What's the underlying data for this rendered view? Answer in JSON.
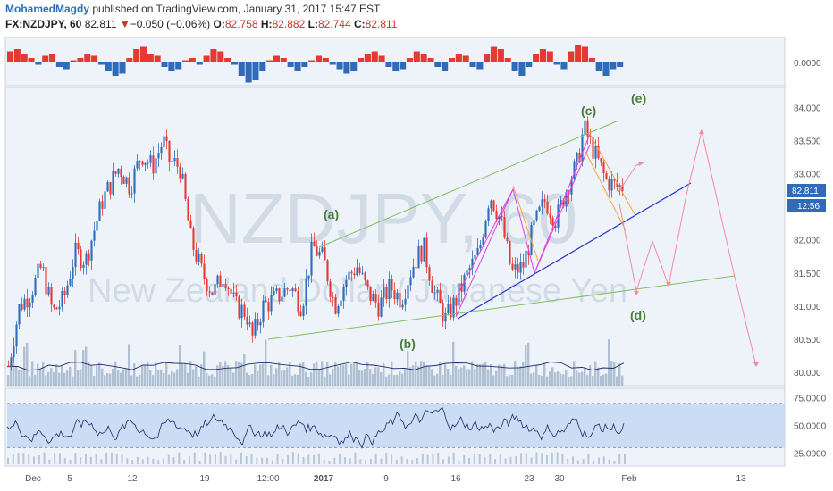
{
  "header": {
    "author": "MohamedMagdy",
    "published": "published on TradingView.com, January 31, 2017 15:47 EST",
    "symbol": "FX:NZDJPY, 60",
    "last": "82.811",
    "change_arrow": "▼",
    "change": "−0.050 (−0.06%)",
    "o_label": "O:",
    "o_val": "82.758",
    "h_label": "H:",
    "h_val": "82.882",
    "l_label": "L:",
    "l_val": "82.744",
    "c_label": "C:",
    "c_val": "82.811"
  },
  "watermark": {
    "symbol": "NZDJPY, 60",
    "name": "New Zealand Dollar / Japanese Yen"
  },
  "colors": {
    "bull": "#2f6bb8",
    "bear": "#e53935",
    "panel_bg": "#eef3fa",
    "rsi_band": "#bcd3f2",
    "green_line": "#7fbf5f",
    "blue_line": "#2233cc",
    "magenta": "#e040e0",
    "orange": "#f2a43a",
    "pink": "#f28aa0"
  },
  "chart_data": [
    {
      "type": "bar",
      "panel": "oscillator",
      "ylim": [
        -0.5,
        0.5
      ],
      "yticks": [
        "0.0000"
      ],
      "note_values_estimated": true,
      "values": [
        0.25,
        0.3,
        0.2,
        0.1,
        -0.05,
        0.15,
        0.2,
        -0.1,
        -0.15,
        0.05,
        0.1,
        0.2,
        0.15,
        -0.05,
        -0.2,
        -0.3,
        -0.25,
        0.1,
        0.3,
        0.35,
        0.2,
        0.15,
        -0.1,
        -0.2,
        -0.15,
        0.05,
        0.1,
        -0.05,
        0.15,
        0.3,
        0.25,
        0.1,
        -0.05,
        -0.3,
        -0.45,
        -0.4,
        -0.2,
        0.05,
        0.15,
        0.1,
        -0.1,
        -0.2,
        -0.1,
        0.05,
        0.15,
        0.1,
        -0.05,
        -0.15,
        -0.25,
        -0.2,
        0.1,
        0.2,
        0.25,
        0.15,
        -0.1,
        -0.2,
        -0.15,
        0.1,
        0.25,
        0.2,
        0.1,
        -0.1,
        -0.2,
        0.1,
        0.2,
        0.15,
        -0.1,
        -0.15,
        0.2,
        0.35,
        0.3,
        0.1,
        -0.2,
        -0.3,
        -0.1,
        0.2,
        0.3,
        0.25,
        -0.05,
        -0.15,
        0.25,
        0.4,
        0.35,
        0.1,
        -0.2,
        -0.3,
        -0.15,
        -0.1
      ]
    },
    {
      "type": "candlestick",
      "panel": "price",
      "ylim": [
        79.8,
        84.3
      ],
      "yticks": [
        "84.000",
        "83.500",
        "83.000",
        "82.500",
        "82.000",
        "81.500",
        "81.000",
        "80.500",
        "80.000"
      ],
      "last_price_label": "82.811",
      "countdown_label": "12:56",
      "xticks": [
        "Dec",
        "5",
        "12",
        "19",
        "12:00",
        "2017",
        "9",
        "16",
        "23",
        "30",
        "Feb",
        "13"
      ],
      "price_path": [
        [
          0,
          80.1
        ],
        [
          2,
          81.0
        ],
        [
          4,
          81.2
        ],
        [
          6,
          81.6
        ],
        [
          8,
          80.9
        ],
        [
          10,
          81.1
        ],
        [
          12,
          81.8
        ],
        [
          14,
          81.7
        ],
        [
          17,
          82.6
        ],
        [
          20,
          83.1
        ],
        [
          22,
          82.8
        ],
        [
          24,
          83.3
        ],
        [
          26,
          83.1
        ],
        [
          28,
          83.5
        ],
        [
          29,
          83.2
        ],
        [
          31,
          83.1
        ],
        [
          33,
          82.0
        ],
        [
          35,
          81.5
        ],
        [
          37,
          81.2
        ],
        [
          39,
          81.5
        ],
        [
          41,
          81.0
        ],
        [
          43,
          80.9
        ],
        [
          44,
          80.5
        ],
        [
          46,
          81.0
        ],
        [
          48,
          81.1
        ],
        [
          51,
          81.3
        ],
        [
          53,
          81.0
        ],
        [
          55,
          81.9
        ],
        [
          57,
          81.7
        ],
        [
          59,
          81.0
        ],
        [
          61,
          81.4
        ],
        [
          63,
          81.6
        ],
        [
          65,
          81.2
        ],
        [
          67,
          81.0
        ],
        [
          69,
          81.3
        ],
        [
          71,
          81.1
        ],
        [
          73,
          81.6
        ],
        [
          75,
          81.9
        ],
        [
          77,
          81.2
        ],
        [
          79,
          80.8
        ],
        [
          81,
          81.1
        ],
        [
          83,
          81.5
        ],
        [
          85,
          81.8
        ],
        [
          87,
          82.7
        ],
        [
          89,
          82.3
        ],
        [
          91,
          81.5
        ],
        [
          93,
          81.6
        ],
        [
          95,
          82.2
        ],
        [
          97,
          82.6
        ],
        [
          99,
          82.3
        ],
        [
          101,
          82.8
        ],
        [
          103,
          83.2
        ],
        [
          104,
          83.7
        ],
        [
          106,
          83.3
        ],
        [
          108,
          82.9
        ],
        [
          110,
          82.8
        ],
        [
          111,
          82.81
        ]
      ],
      "volume_label": "",
      "annotations": [
        "(a)",
        "(b)",
        "(c)",
        "(d)",
        "(e)"
      ]
    },
    {
      "type": "line",
      "panel": "rsi",
      "ylim": [
        15,
        82
      ],
      "yticks": [
        "75.0000",
        "50.0000",
        "25.0000"
      ],
      "band": [
        30,
        70
      ],
      "note_values_estimated": true
    }
  ]
}
